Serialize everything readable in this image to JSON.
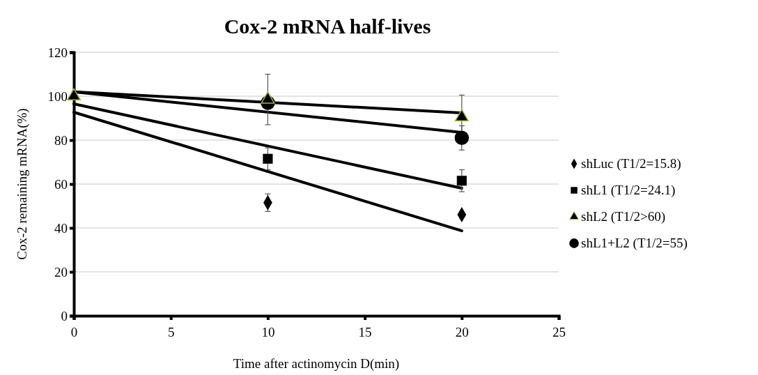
{
  "chart_data": {
    "type": "scatter",
    "title": "Cox-2 mRNA half-lives",
    "xlabel": "Time after actinomycin D(min)",
    "ylabel": "Cox-2 remaining mRNA(%)",
    "xlim": [
      0,
      25
    ],
    "xticks": [
      0,
      5,
      10,
      15,
      20,
      25
    ],
    "ylim": [
      0,
      120
    ],
    "yticks": [
      0,
      20,
      40,
      60,
      80,
      100,
      120
    ],
    "grid": "y",
    "legend": "right",
    "series": [
      {
        "name": "shLuc (T1/2=15.8)",
        "color": "#000000",
        "marker": "diamond",
        "x": [
          10,
          20
        ],
        "values": [
          51.5,
          46
        ],
        "errors": [
          4,
          null
        ]
      },
      {
        "name": "shL1 (T1/2=24.1)",
        "color": "#000000",
        "marker": "square",
        "x": [
          10,
          20
        ],
        "values": [
          71.5,
          61.5
        ],
        "errors": [
          5,
          5
        ]
      },
      {
        "name": "shL2 (T1/2>60)",
        "color": "#000000",
        "marker": "triangle",
        "x": [
          0,
          10,
          20
        ],
        "values": [
          100,
          98.5,
          90.5
        ],
        "errors": [
          null,
          11.5,
          10
        ]
      },
      {
        "name": "shL1+L2 (T1/2=55)",
        "color": "#000000",
        "marker": "circle",
        "x": [
          10,
          20
        ],
        "values": [
          97,
          81
        ],
        "errors": [
          null,
          5.5
        ]
      },
      {
        "type": "line",
        "color": "#000000",
        "x": [
          0,
          20
        ],
        "values": [
          92.7,
          38.7
        ]
      },
      {
        "type": "line",
        "color": "#000000",
        "x": [
          0,
          20
        ],
        "values": [
          96.5,
          58.1
        ]
      },
      {
        "type": "line",
        "color": "#000000",
        "x": [
          0,
          20
        ],
        "values": [
          102,
          92.4
        ]
      },
      {
        "type": "line",
        "color": "#000000",
        "x": [
          0,
          20
        ],
        "values": [
          102,
          83.5
        ]
      }
    ]
  }
}
